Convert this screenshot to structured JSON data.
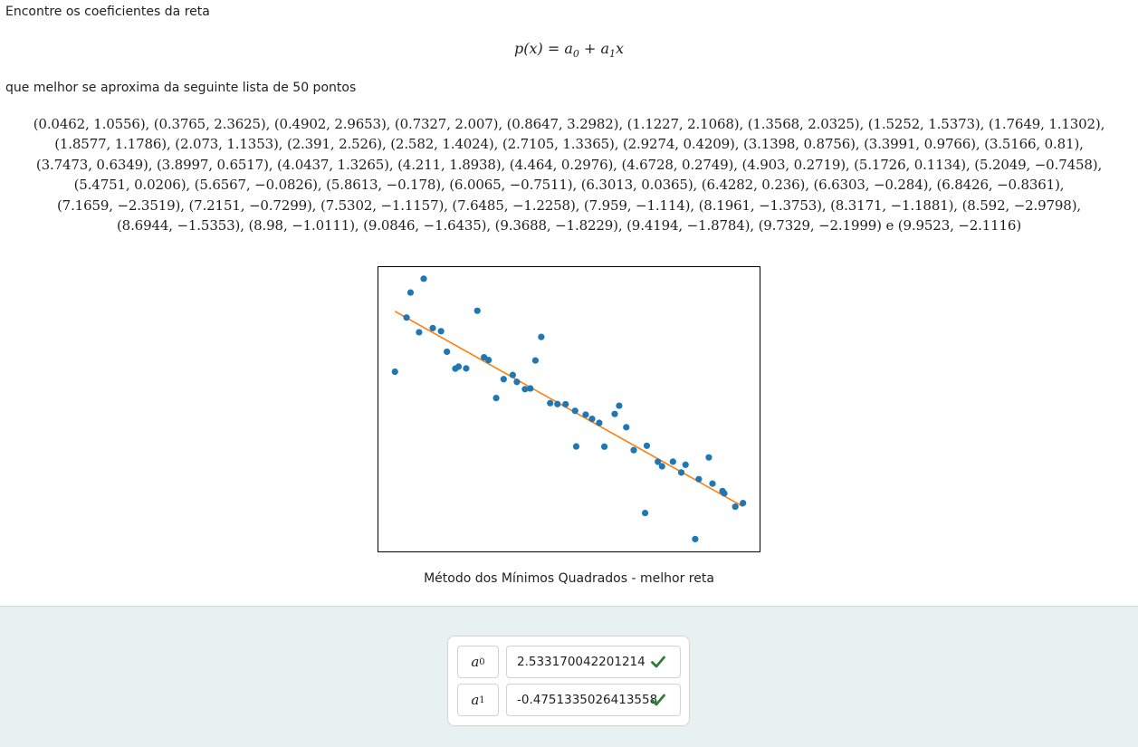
{
  "question": {
    "intro": "Encontre os coeficientes da reta",
    "equation": {
      "lhs": "p(x) = a",
      "sub0": "0",
      "mid": " + a",
      "sub1": "1",
      "rhs": "x"
    },
    "list_intro": "que melhor se aproxima da seguinte lista de 50 pontos",
    "list_conjunction": "e",
    "points": [
      [
        0.0462,
        1.0556
      ],
      [
        0.3765,
        2.3625
      ],
      [
        0.4902,
        2.9653
      ],
      [
        0.7327,
        2.007
      ],
      [
        0.8647,
        3.2982
      ],
      [
        1.1227,
        2.1068
      ],
      [
        1.3568,
        2.0325
      ],
      [
        1.5252,
        1.5373
      ],
      [
        1.7649,
        1.1302
      ],
      [
        1.8577,
        1.1786
      ],
      [
        2.073,
        1.1353
      ],
      [
        2.391,
        2.526
      ],
      [
        2.582,
        1.4024
      ],
      [
        2.7105,
        1.3365
      ],
      [
        2.9274,
        0.4209
      ],
      [
        3.1398,
        0.8756
      ],
      [
        3.3991,
        0.9766
      ],
      [
        3.5166,
        0.81
      ],
      [
        3.7473,
        0.6349
      ],
      [
        3.8997,
        0.6517
      ],
      [
        4.0437,
        1.3265
      ],
      [
        4.211,
        1.8938
      ],
      [
        4.464,
        0.2976
      ],
      [
        4.6728,
        0.2749
      ],
      [
        4.903,
        0.2719
      ],
      [
        5.1726,
        0.1134
      ],
      [
        5.2049,
        -0.7458
      ],
      [
        5.4751,
        0.0206
      ],
      [
        5.6567,
        -0.0826
      ],
      [
        5.8613,
        -0.178
      ],
      [
        6.0065,
        -0.7511
      ],
      [
        6.3013,
        0.0365
      ],
      [
        6.4282,
        0.236
      ],
      [
        6.6303,
        -0.284
      ],
      [
        6.8426,
        -0.8361
      ],
      [
        7.1659,
        -2.3519
      ],
      [
        7.2151,
        -0.7299
      ],
      [
        7.5302,
        -1.1157
      ],
      [
        7.6485,
        -1.2258
      ],
      [
        7.959,
        -1.114
      ],
      [
        8.1961,
        -1.3753
      ],
      [
        8.3171,
        -1.1881
      ],
      [
        8.592,
        -2.9798
      ],
      [
        8.6944,
        -1.5353
      ],
      [
        8.98,
        -1.0111
      ],
      [
        9.0846,
        -1.6435
      ],
      [
        9.3688,
        -1.8229
      ],
      [
        9.4194,
        -1.8784
      ],
      [
        9.7329,
        -2.1999
      ],
      [
        9.9523,
        -2.1116
      ]
    ]
  },
  "chart_data": {
    "type": "scatter",
    "title": "",
    "xlabel": "",
    "ylabel": "",
    "xlim": [
      -0.45,
      10.45
    ],
    "ylim": [
      -3.3,
      3.6
    ],
    "axes_ticks": "none",
    "grid": false,
    "caption": "Método dos Mínimos Quadrados - melhor reta",
    "series": [
      {
        "type": "scatter",
        "color": "#1f77b4"
      },
      {
        "type": "line",
        "color": "#ff7f0e",
        "intercept": 2.533170042201214,
        "slope": -0.4751335026413558,
        "x": [
          0.0462,
          9.9523
        ]
      }
    ]
  },
  "answers": [
    {
      "symbol": "a",
      "subscript": "0",
      "value": "2.533170042201214",
      "status": "correct"
    },
    {
      "symbol": "a",
      "subscript": "1",
      "value": "-0.4751335026413558",
      "status": "correct"
    }
  ],
  "colors": {
    "correct": "#2e7d32",
    "answer_background": "#e8f1f2",
    "points": "#1f77b4",
    "fit_line": "#ff7f0e"
  }
}
